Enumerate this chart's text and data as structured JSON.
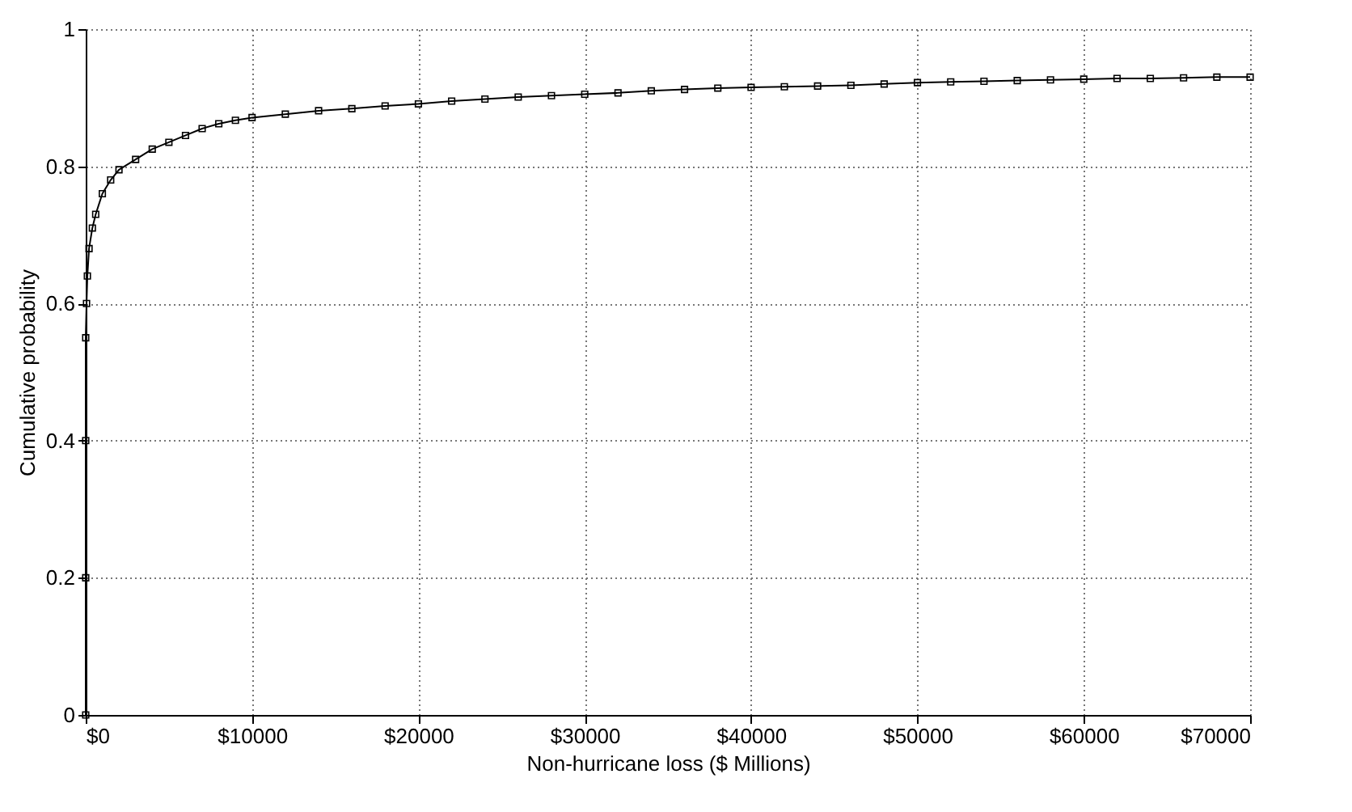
{
  "chart_data": {
    "type": "line",
    "xlabel": "Non-hurricane loss ($ Millions)",
    "ylabel": "Cumulative probability",
    "x": [
      0,
      0,
      0,
      0,
      50,
      100,
      200,
      400,
      600,
      1000,
      1500,
      2000,
      3000,
      4000,
      5000,
      6000,
      7000,
      8000,
      9000,
      10000,
      12000,
      14000,
      16000,
      18000,
      20000,
      22000,
      24000,
      26000,
      28000,
      30000,
      32000,
      34000,
      36000,
      38000,
      40000,
      42000,
      44000,
      46000,
      48000,
      50000,
      52000,
      54000,
      56000,
      58000,
      60000,
      62000,
      64000,
      66000,
      68000,
      70000
    ],
    "series": [
      {
        "color": "#000000",
        "values": [
          0,
          0.2,
          0.4,
          0.55,
          0.6,
          0.64,
          0.68,
          0.71,
          0.73,
          0.76,
          0.78,
          0.795,
          0.81,
          0.825,
          0.835,
          0.845,
          0.855,
          0.862,
          0.867,
          0.871,
          0.876,
          0.881,
          0.884,
          0.888,
          0.891,
          0.895,
          0.898,
          0.901,
          0.903,
          0.905,
          0.907,
          0.91,
          0.912,
          0.914,
          0.915,
          0.916,
          0.917,
          0.918,
          0.92,
          0.922,
          0.923,
          0.924,
          0.925,
          0.926,
          0.927,
          0.928,
          0.928,
          0.929,
          0.93,
          0.93
        ]
      }
    ],
    "xlim": [
      0,
      70000
    ],
    "xticks": [
      {
        "value": 0,
        "label": "$0"
      },
      {
        "value": 10000,
        "label": "$10000"
      },
      {
        "value": 20000,
        "label": "$20000"
      },
      {
        "value": 30000,
        "label": "$30000"
      },
      {
        "value": 40000,
        "label": "$40000"
      },
      {
        "value": 50000,
        "label": "$50000"
      },
      {
        "value": 60000,
        "label": "$60000"
      },
      {
        "value": 70000,
        "label": "$70000"
      }
    ],
    "ylim": [
      0,
      1
    ],
    "yticks": [
      0,
      0.2,
      0.4,
      0.6,
      0.8,
      1
    ],
    "grid": true,
    "marker": "square",
    "line_style": "solid"
  }
}
